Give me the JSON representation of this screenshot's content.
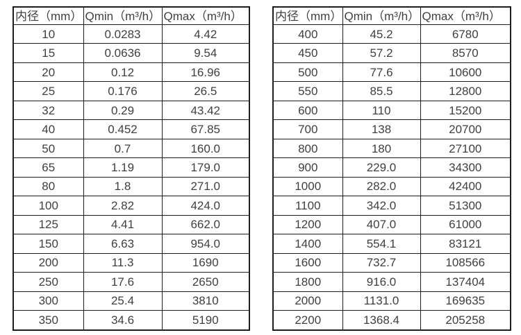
{
  "colors": {
    "border": "#1d1d1d",
    "text": "#3f3f3f",
    "background": "#ffffff"
  },
  "tables": {
    "left": {
      "title": "flow-rates-small-diameters",
      "headers": [
        "内径（mm）",
        "Qmin（m³/h）",
        "Qmax（m³/h）"
      ],
      "rows": [
        [
          "10",
          "0.0283",
          "4.42"
        ],
        [
          "15",
          "0.0636",
          "9.54"
        ],
        [
          "20",
          "0.12",
          "16.96"
        ],
        [
          "25",
          "0.176",
          "26.5"
        ],
        [
          "32",
          "0.29",
          "43.42"
        ],
        [
          "40",
          "0.452",
          "67.85"
        ],
        [
          "50",
          "0.7",
          "160.0"
        ],
        [
          "65",
          "1.19",
          "179.0"
        ],
        [
          "80",
          "1.8",
          "271.0"
        ],
        [
          "100",
          "2.82",
          "424.0"
        ],
        [
          "125",
          "4.41",
          "662.0"
        ],
        [
          "150",
          "6.63",
          "954.0"
        ],
        [
          "200",
          "11.3",
          "1690"
        ],
        [
          "250",
          "17.6",
          "2650"
        ],
        [
          "300",
          "25.4",
          "3810"
        ],
        [
          "350",
          "34.6",
          "5190"
        ]
      ]
    },
    "right": {
      "title": "flow-rates-large-diameters",
      "headers": [
        "内径（mm）",
        "Qmin（m³/h）",
        "Qmax（m³/h）"
      ],
      "rows": [
        [
          "400",
          "45.2",
          "6780"
        ],
        [
          "450",
          "57.2",
          "8570"
        ],
        [
          "500",
          "77.6",
          "10600"
        ],
        [
          "550",
          "85.5",
          "12800"
        ],
        [
          "600",
          "110",
          "15200"
        ],
        [
          "700",
          "138",
          "20700"
        ],
        [
          "800",
          "180",
          "27100"
        ],
        [
          "900",
          "229.0",
          "34300"
        ],
        [
          "1000",
          "282.0",
          "42400"
        ],
        [
          "1100",
          "342.0",
          "51300"
        ],
        [
          "1200",
          "407.0",
          "61000"
        ],
        [
          "1400",
          "554.1",
          "83121"
        ],
        [
          "1600",
          "732.7",
          "108566"
        ],
        [
          "1800",
          "916.0",
          "137404"
        ],
        [
          "2000",
          "1131.0",
          "169635"
        ],
        [
          "2200",
          "1368.4",
          "205258"
        ]
      ]
    }
  }
}
